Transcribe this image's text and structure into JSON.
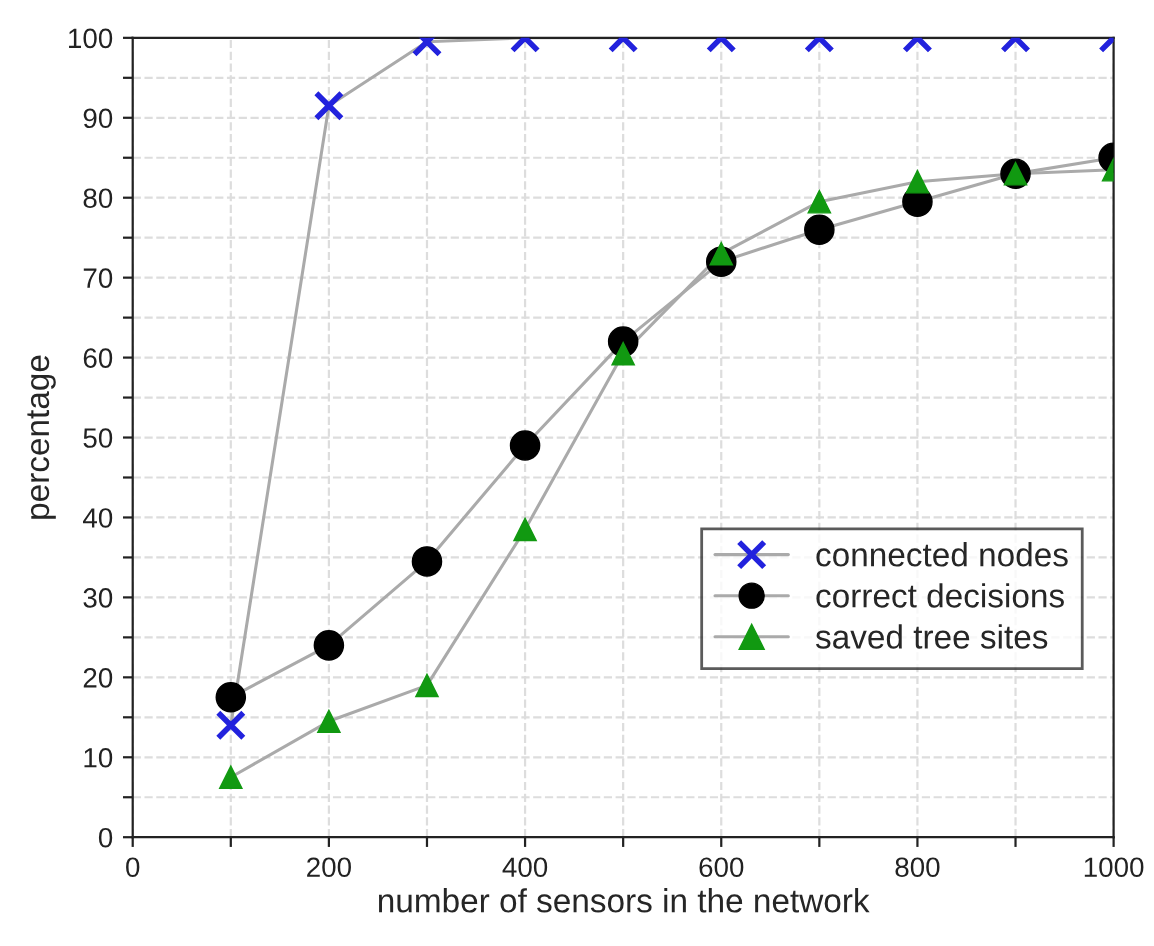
{
  "chart_data": {
    "type": "line",
    "xlabel": "number of sensors in the network",
    "ylabel": "percentage",
    "x": [
      100,
      200,
      300,
      400,
      500,
      600,
      700,
      800,
      900,
      1000
    ],
    "series": [
      {
        "name": "connected nodes",
        "color": "#2222dd",
        "marker": "cross",
        "values": [
          14,
          91.5,
          99.5,
          100,
          100,
          100,
          100,
          100,
          100,
          100
        ]
      },
      {
        "name": "correct decisions",
        "color": "#000000",
        "marker": "circle",
        "values": [
          17.5,
          24,
          34.5,
          49,
          62,
          72,
          76,
          79.5,
          83,
          85
        ]
      },
      {
        "name": "saved tree sites",
        "color": "#119911",
        "marker": "triangle",
        "values": [
          7.5,
          14.5,
          19,
          38.5,
          60.5,
          73,
          79.5,
          82,
          83,
          83.5
        ]
      }
    ],
    "xlim": [
      0,
      1000
    ],
    "ylim": [
      0,
      100
    ],
    "xticks": [
      0,
      {
        "value": 100,
        "label": null
      },
      200,
      {
        "value": 300,
        "label": null
      },
      400,
      {
        "value": 500,
        "label": null
      },
      600,
      {
        "value": 700,
        "label": null
      },
      800,
      {
        "value": 900,
        "label": null
      },
      1000
    ],
    "yticks": [
      0,
      {
        "value": 5,
        "label": null
      },
      10,
      {
        "value": 15,
        "label": null
      },
      20,
      {
        "value": 25,
        "label": null
      },
      30,
      {
        "value": 35,
        "label": null
      },
      40,
      {
        "value": 45,
        "label": null
      },
      50,
      {
        "value": 55,
        "label": null
      },
      60,
      {
        "value": 65,
        "label": null
      },
      70,
      {
        "value": 75,
        "label": null
      },
      80,
      {
        "value": 85,
        "label": null
      },
      90,
      {
        "value": 95,
        "label": null
      },
      100
    ],
    "grid": true,
    "legend": "lower right",
    "line_style": "solid"
  }
}
